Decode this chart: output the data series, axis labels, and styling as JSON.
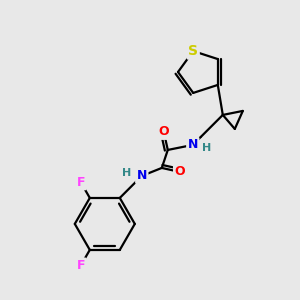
{
  "background_color": "#e8e8e8",
  "bond_color": "#000000",
  "atom_colors": {
    "S": "#cccc00",
    "N": "#0000ee",
    "O": "#ff0000",
    "F": "#ff44ff",
    "H": "#338888",
    "C": "#000000"
  },
  "figsize": [
    3.0,
    3.0
  ],
  "dpi": 100
}
